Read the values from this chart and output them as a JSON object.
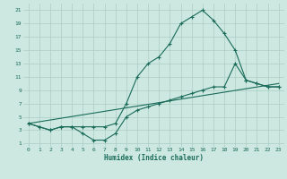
{
  "xlabel": "Humidex (Indice chaleur)",
  "bg_color": "#cce8e0",
  "grid_color": "#aaccc4",
  "line_color": "#1a6b5a",
  "xlim": [
    -0.5,
    23.5
  ],
  "ylim": [
    0.5,
    22
  ],
  "yticks": [
    1,
    3,
    5,
    7,
    9,
    11,
    13,
    15,
    17,
    19,
    21
  ],
  "xticks": [
    0,
    1,
    2,
    3,
    4,
    5,
    6,
    7,
    8,
    9,
    10,
    11,
    12,
    13,
    14,
    15,
    16,
    17,
    18,
    19,
    20,
    21,
    22,
    23
  ],
  "line1_x": [
    0,
    1,
    2,
    3,
    4,
    5,
    6,
    7,
    8,
    9,
    10,
    11,
    12,
    13,
    14,
    15,
    16,
    17,
    18,
    19,
    20,
    21,
    22,
    23
  ],
  "line1_y": [
    4,
    3.5,
    3,
    3.5,
    3.5,
    3.5,
    3.5,
    3.5,
    4,
    7,
    11,
    13,
    14,
    16,
    19,
    20,
    21,
    19.5,
    17.5,
    15,
    10.5,
    10,
    9.5,
    9.5
  ],
  "line2_x": [
    0,
    23
  ],
  "line2_y": [
    4,
    10
  ],
  "line3_x": [
    0,
    1,
    2,
    3,
    4,
    5,
    6,
    7,
    8,
    9,
    10,
    11,
    12,
    13,
    14,
    15,
    16,
    17,
    18,
    19,
    20,
    21,
    22,
    23
  ],
  "line3_y": [
    4,
    3.5,
    3,
    3.5,
    3.5,
    2.5,
    1.5,
    1.5,
    2.5,
    5,
    6,
    6.5,
    7,
    7.5,
    8,
    8.5,
    9,
    9.5,
    9.5,
    13,
    10.5,
    10,
    9.5,
    9.5
  ]
}
